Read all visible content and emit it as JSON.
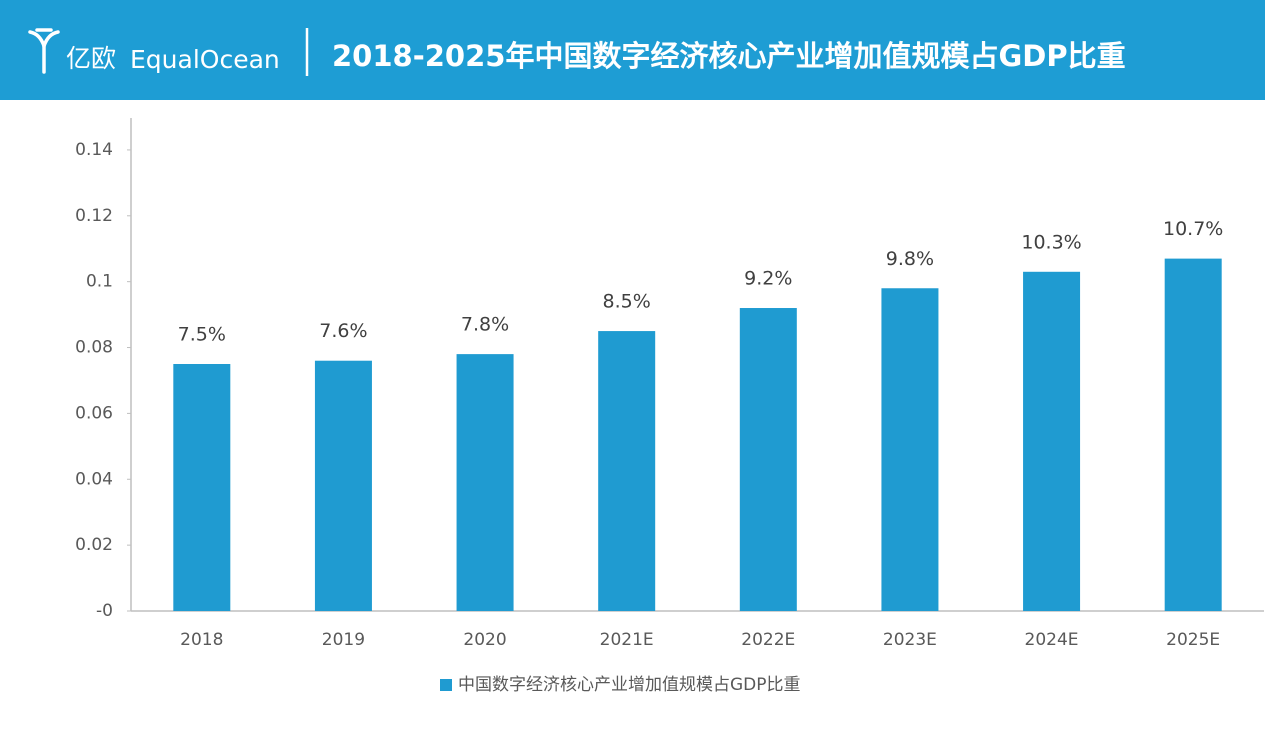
{
  "header": {
    "brand_cn": "亿欧",
    "brand_en": "EqualOcean",
    "title": "2018-2025年中国数字经济核心产业增加值规模占GDP比重"
  },
  "chart_data": {
    "type": "bar",
    "categories": [
      "2018",
      "2019",
      "2020",
      "2021E",
      "2022E",
      "2023E",
      "2024E",
      "2025E"
    ],
    "series": [
      {
        "name": "中国数字经济核心产业增加值规模占GDP比重",
        "color": "#1f9bd1",
        "values": [
          0.075,
          0.076,
          0.078,
          0.085,
          0.092,
          0.098,
          0.103,
          0.107
        ],
        "value_labels": [
          "7.5%",
          "7.6%",
          "7.8%",
          "8.5%",
          "9.2%",
          "9.8%",
          "10.3%",
          "10.7%"
        ]
      }
    ],
    "ylim": [
      0,
      0.15
    ],
    "yticks": [
      {
        "value": 0,
        "label": "-0"
      },
      0.02,
      0.04,
      0.06,
      0.08,
      0.1,
      0.12,
      0.14
    ],
    "grid": false,
    "legend": "bottom"
  }
}
